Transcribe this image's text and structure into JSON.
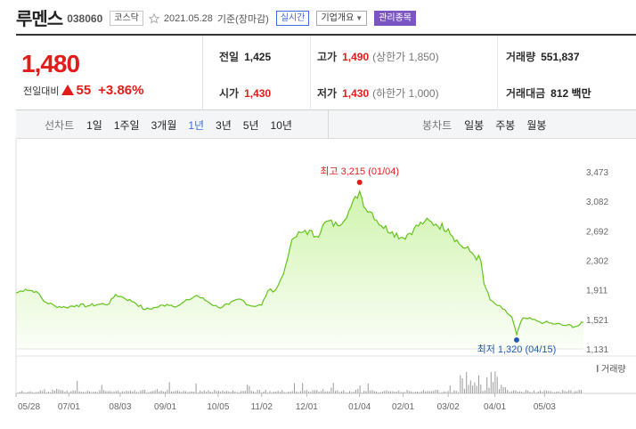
{
  "header": {
    "name": "루멘스",
    "code": "038060",
    "market": "코스닥",
    "date": "2021.05.28",
    "basis": "기준(장마감)",
    "realtime_label": "실시간",
    "company_info_label": "기업개요",
    "managed_label": "관리종목"
  },
  "summary": {
    "price": "1,480",
    "change_label": "전일대비",
    "change_amount": "55",
    "change_percent": "+3.86%",
    "prev_label": "전일",
    "prev_value": "1,425",
    "open_label": "시가",
    "open_value": "1,430",
    "high_label": "고가",
    "high_value": "1,490",
    "upper_limit": "(상한가 1,850)",
    "low_label": "저가",
    "low_value": "1,430",
    "lower_limit": "(하한가 1,000)",
    "volume_label": "거래량",
    "volume_value": "551,837",
    "amount_label": "거래대금",
    "amount_value": "812 백만"
  },
  "tabs": {
    "line_title": "선차트",
    "periods": [
      "1일",
      "1주일",
      "3개월",
      "1년",
      "3년",
      "5년",
      "10년"
    ],
    "active_period": "1년",
    "candle_title": "봉차트",
    "candles": [
      "일봉",
      "주봉",
      "월봉"
    ]
  },
  "colors": {
    "up": "#e21b1b",
    "line": "#62c41a",
    "fill": "#cdf3a8",
    "volume": "#9a9a9a",
    "low_marker": "#1f57b3",
    "accent": "#3d6bd6"
  },
  "chart_data": {
    "type": "area",
    "y_ticks": [
      "3,473",
      "3,082",
      "2,692",
      "2,302",
      "1,911",
      "1,521",
      "1,131"
    ],
    "ylim": [
      1131,
      3473
    ],
    "x_ticks": [
      "05/28",
      "07/01",
      "08/03",
      "09/01",
      "10/05",
      "11/02",
      "12/01",
      "01/04",
      "02/01",
      "03/02",
      "04/01",
      "05/03"
    ],
    "high_label": "최고 3,215 (01/04)",
    "low_label": "최저 1,320 (04/15)",
    "high_value": 3215,
    "low_value": 1320,
    "volume_label": "거래량",
    "x_start": "2020-05-28",
    "x_end": "2021-05-28",
    "series": [
      {
        "points": [
          [
            "2020-05-28",
            1870
          ],
          [
            "2020-06-03",
            1920
          ],
          [
            "2020-06-10",
            1890
          ],
          [
            "2020-06-15",
            1760
          ],
          [
            "2020-06-22",
            1700
          ],
          [
            "2020-06-29",
            1680
          ],
          [
            "2020-07-06",
            1710
          ],
          [
            "2020-07-13",
            1700
          ],
          [
            "2020-07-20",
            1720
          ],
          [
            "2020-07-27",
            1730
          ],
          [
            "2020-07-31",
            1850
          ],
          [
            "2020-08-05",
            1810
          ],
          [
            "2020-08-12",
            1750
          ],
          [
            "2020-08-19",
            1650
          ],
          [
            "2020-08-26",
            1680
          ],
          [
            "2020-09-02",
            1720
          ],
          [
            "2020-09-09",
            1700
          ],
          [
            "2020-09-16",
            1780
          ],
          [
            "2020-09-21",
            1840
          ],
          [
            "2020-09-28",
            1760
          ],
          [
            "2020-10-05",
            1680
          ],
          [
            "2020-10-12",
            1720
          ],
          [
            "2020-10-19",
            1790
          ],
          [
            "2020-10-26",
            1700
          ],
          [
            "2020-11-02",
            1710
          ],
          [
            "2020-11-06",
            1900
          ],
          [
            "2020-11-11",
            1910
          ],
          [
            "2020-11-16",
            2120
          ],
          [
            "2020-11-20",
            2450
          ],
          [
            "2020-11-23",
            2600
          ],
          [
            "2020-11-30",
            2700
          ],
          [
            "2020-12-07",
            2620
          ],
          [
            "2020-12-14",
            2820
          ],
          [
            "2020-12-21",
            2760
          ],
          [
            "2020-12-28",
            2950
          ],
          [
            "2021-01-04",
            3215
          ],
          [
            "2021-01-08",
            2980
          ],
          [
            "2021-01-12",
            2930
          ],
          [
            "2021-01-18",
            2760
          ],
          [
            "2021-01-25",
            2680
          ],
          [
            "2021-02-01",
            2600
          ],
          [
            "2021-02-08",
            2720
          ],
          [
            "2021-02-15",
            2820
          ],
          [
            "2021-02-22",
            2780
          ],
          [
            "2021-03-02",
            2720
          ],
          [
            "2021-03-09",
            2520
          ],
          [
            "2021-03-16",
            2420
          ],
          [
            "2021-03-23",
            2300
          ],
          [
            "2021-03-25",
            2000
          ],
          [
            "2021-03-29",
            1780
          ],
          [
            "2021-04-01",
            1730
          ],
          [
            "2021-04-06",
            1660
          ],
          [
            "2021-04-12",
            1550
          ],
          [
            "2021-04-15",
            1320
          ],
          [
            "2021-04-19",
            1540
          ],
          [
            "2021-04-22",
            1530
          ],
          [
            "2021-04-28",
            1500
          ],
          [
            "2021-05-03",
            1480
          ],
          [
            "2021-05-10",
            1460
          ],
          [
            "2021-05-17",
            1440
          ],
          [
            "2021-05-24",
            1430
          ],
          [
            "2021-05-28",
            1480
          ]
        ]
      }
    ]
  }
}
